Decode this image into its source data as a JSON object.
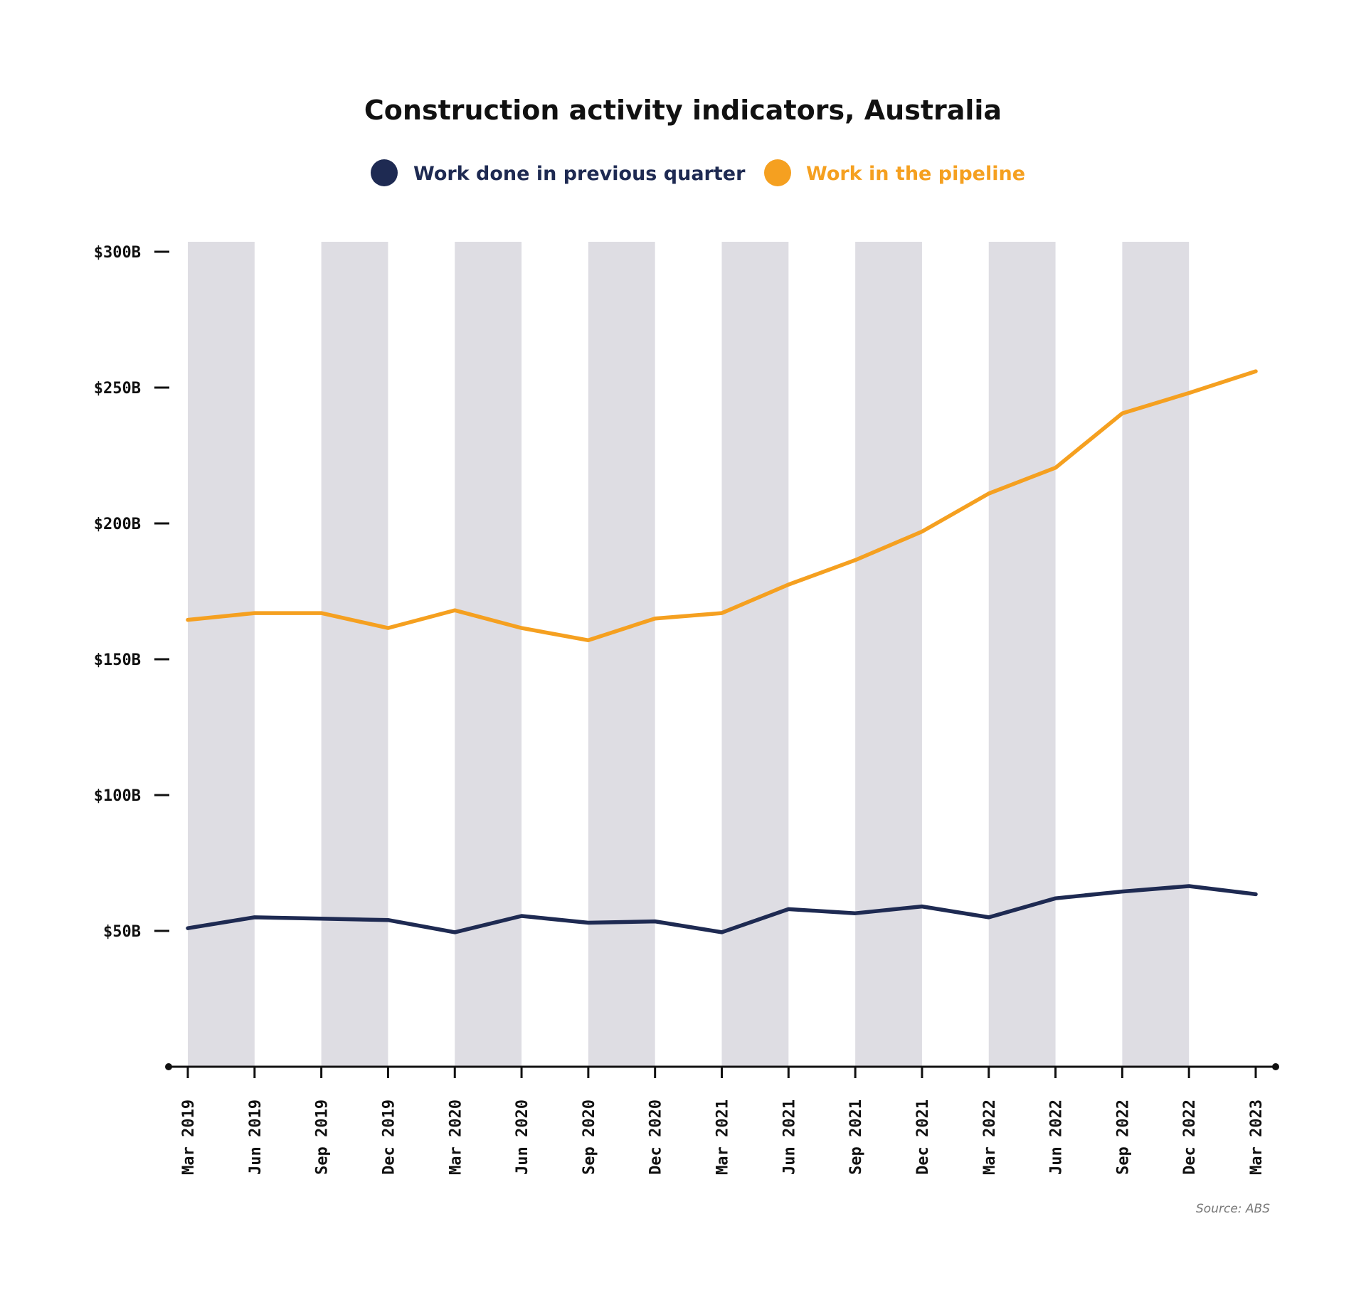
{
  "chart_data": {
    "type": "line",
    "title": "Construction activity indicators, Australia",
    "xlabel": "",
    "ylabel": "",
    "source": "Source: ABS",
    "categories": [
      "Mar 2019",
      "Jun 2019",
      "Sep 2019",
      "Dec 2019",
      "Mar 2020",
      "Jun 2020",
      "Sep 2020",
      "Dec 2020",
      "Mar 2021",
      "Jun 2021",
      "Sep 2021",
      "Dec 2021",
      "Mar 2022",
      "Jun 2022",
      "Sep 2022",
      "Dec 2022",
      "Mar 2023"
    ],
    "y_ticks": [
      {
        "value": 300,
        "label": "$300B"
      },
      {
        "value": 250,
        "label": "$250B"
      },
      {
        "value": 200,
        "label": "$200B"
      },
      {
        "value": 150,
        "label": "$150B"
      },
      {
        "value": 100,
        "label": "$100B"
      },
      {
        "value": 50,
        "label": "$50B"
      }
    ],
    "ylim": [
      0,
      300
    ],
    "legend_position": "top-center",
    "alternating_bands": true,
    "band_color": "#dedde3",
    "series": [
      {
        "name": "Work done in previous quarter",
        "color": "#1e2a52",
        "values": [
          51,
          55,
          54.5,
          54,
          49.5,
          55.5,
          53,
          53.5,
          49.5,
          58,
          56.5,
          59,
          55,
          62,
          64.5,
          66.5,
          63.5
        ]
      },
      {
        "name": "Work in the pipeline",
        "color": "#f5a020",
        "values": [
          164.5,
          167,
          167,
          161.5,
          168,
          161.5,
          157,
          165,
          167,
          177.5,
          186.5,
          197,
          211,
          220.5,
          240.5,
          248,
          256
        ]
      }
    ]
  }
}
